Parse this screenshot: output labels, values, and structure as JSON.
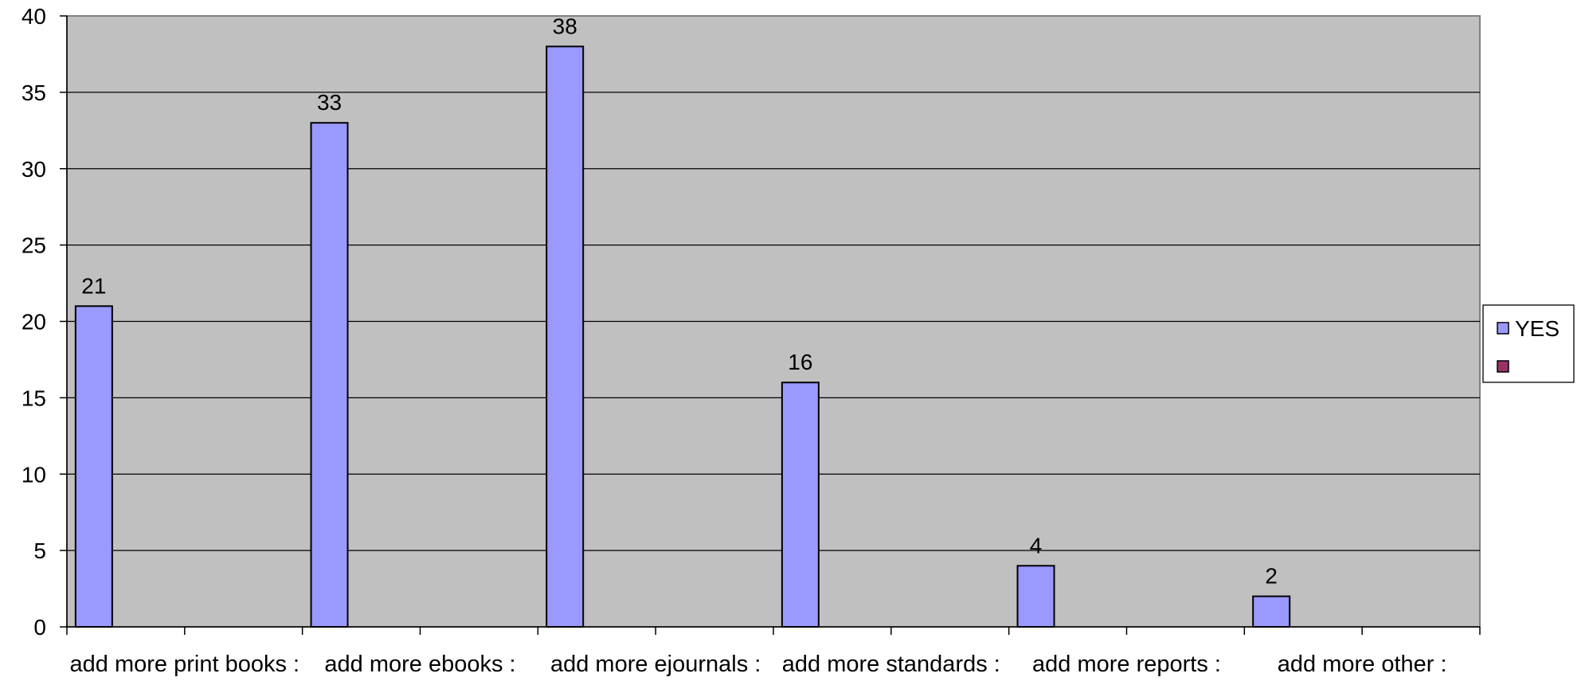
{
  "chart_data": {
    "type": "bar",
    "title": "",
    "xlabel": "",
    "ylabel": "",
    "categories": [
      "add more print books :",
      "add more ebooks :",
      "add more ejournals :",
      "add more standards :",
      "add more reports :",
      "add more other :"
    ],
    "series": [
      {
        "name": "YES",
        "color": "#9999ff",
        "values": [
          21,
          33,
          38,
          16,
          4,
          2
        ]
      },
      {
        "name": "",
        "color": "#993366",
        "values": [
          0,
          0,
          0,
          0,
          0,
          0
        ]
      }
    ],
    "ylim": [
      0,
      40
    ],
    "yticks": [
      0,
      5,
      10,
      15,
      20,
      25,
      30,
      35,
      40
    ],
    "grid": true,
    "data_labels": true,
    "legend_position": "right",
    "plot_background": "#c0c0c0"
  }
}
